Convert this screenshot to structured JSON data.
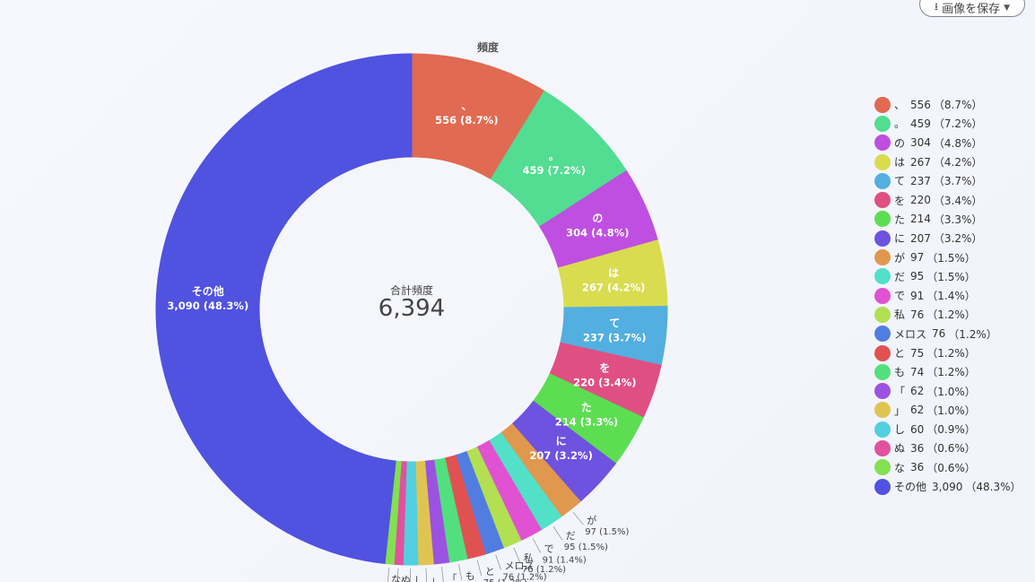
{
  "toolbar": {
    "save_label": "画像を保存",
    "save_icon": "download-icon",
    "caret_icon": "caret-down-icon"
  },
  "chart_data": {
    "type": "pie",
    "subtype": "donut",
    "title": "頻度",
    "center_label": "合計頻度",
    "center_value": "6,394",
    "total": 6394,
    "slices": [
      {
        "label": "、",
        "value": 556,
        "percent": "8.7%",
        "color": "#e06a52"
      },
      {
        "label": "。",
        "value": 459,
        "percent": "7.2%",
        "color": "#52dd92"
      },
      {
        "label": "の",
        "value": 304,
        "percent": "4.8%",
        "color": "#bf4fe0"
      },
      {
        "label": "は",
        "value": 267,
        "percent": "4.2%",
        "color": "#d9dc4f"
      },
      {
        "label": "て",
        "value": 237,
        "percent": "3.7%",
        "color": "#52afe0"
      },
      {
        "label": "を",
        "value": 220,
        "percent": "3.4%",
        "color": "#e04f82"
      },
      {
        "label": "た",
        "value": 214,
        "percent": "3.3%",
        "color": "#5ddd52"
      },
      {
        "label": "に",
        "value": 207,
        "percent": "3.2%",
        "color": "#6e52e0"
      },
      {
        "label": "が",
        "value": 97,
        "percent": "1.5%",
        "color": "#e0984f"
      },
      {
        "label": "だ",
        "value": 95,
        "percent": "1.5%",
        "color": "#52e0c9"
      },
      {
        "label": "で",
        "value": 91,
        "percent": "1.4%",
        "color": "#e052d2"
      },
      {
        "label": "私",
        "value": 76,
        "percent": "1.2%",
        "color": "#b2e052"
      },
      {
        "label": "メロス",
        "value": 76,
        "percent": "1.2%",
        "color": "#527de0"
      },
      {
        "label": "と",
        "value": 75,
        "percent": "1.2%",
        "color": "#e05252"
      },
      {
        "label": "も",
        "value": 74,
        "percent": "1.2%",
        "color": "#52e07e"
      },
      {
        "label": "「",
        "value": 62,
        "percent": "1.0%",
        "color": "#9c52e0"
      },
      {
        "label": "」",
        "value": 62,
        "percent": "1.0%",
        "color": "#e0c452"
      },
      {
        "label": "し",
        "value": 60,
        "percent": "0.9%",
        "color": "#52cfe0"
      },
      {
        "label": "ぬ",
        "value": 36,
        "percent": "0.6%",
        "color": "#e0529d"
      },
      {
        "label": "な",
        "value": 36,
        "percent": "0.6%",
        "color": "#82e052"
      },
      {
        "label": "その他",
        "value": 3090,
        "percent": "48.3%",
        "color": "#5052e0"
      }
    ],
    "legend_position": "right"
  }
}
